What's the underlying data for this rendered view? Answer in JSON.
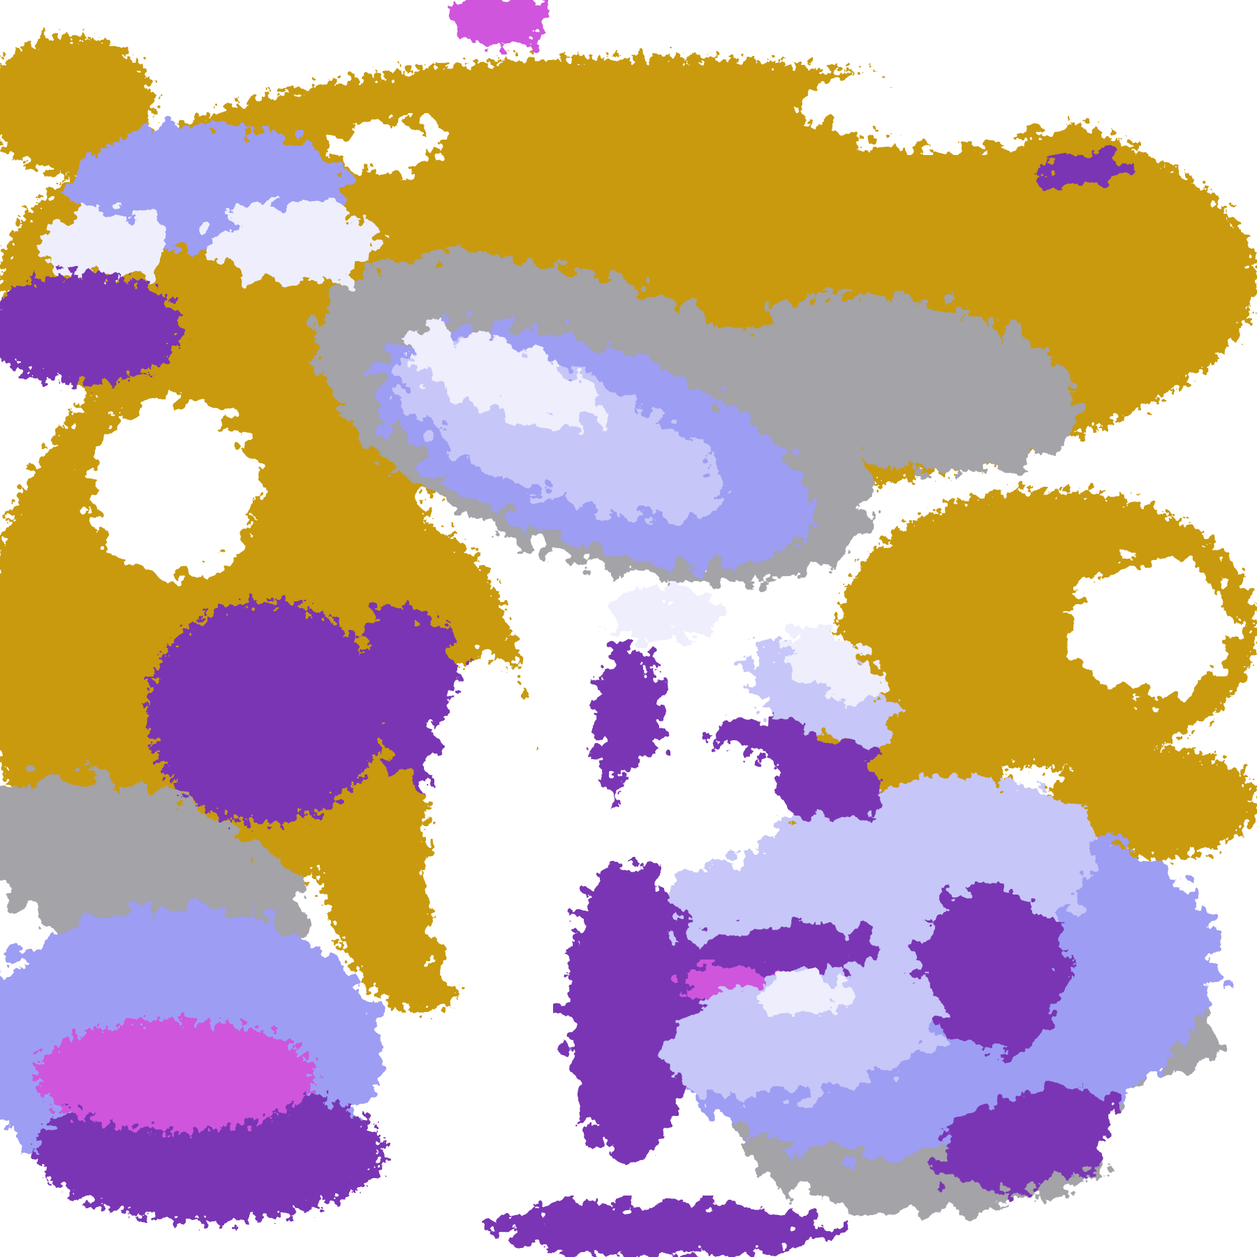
{
  "image": {
    "kind": "satellite cloud classification map",
    "palette": {
      "clear": "#FFFFFF",
      "gold": "#C99A0C",
      "deep_purple": "#7A34B4",
      "magenta": "#CF55DD",
      "lavender": "#9D9DF4",
      "light_lavender": "#C6C6F8",
      "pale_lavender": "#EEEEFD",
      "gray": "#A3A3A8"
    }
  }
}
